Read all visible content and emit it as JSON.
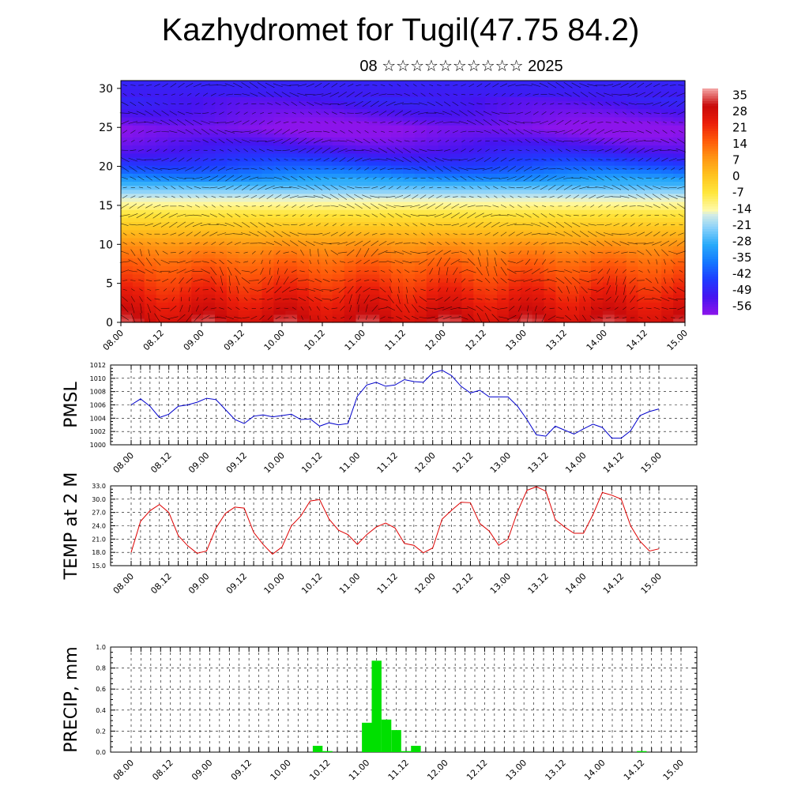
{
  "title": "Kazhydromet for Tugil(47.75 84.2)",
  "subtitle": "08 ☆☆☆☆☆☆☆☆☆☆ 2025",
  "colors": {
    "pmsl_line": "#0000cc",
    "temp_line": "#dd0000",
    "precip_bar": "#00e000",
    "grid": "#000000"
  },
  "colorbar": {
    "labels": [
      "35",
      "28",
      "21",
      "14",
      "7",
      "0",
      "-7",
      "-14",
      "-21",
      "-28",
      "-35",
      "-42",
      "-49",
      "-56"
    ]
  },
  "chart_data": [
    {
      "id": "upper-air",
      "type": "heatmap",
      "title": "",
      "xlabel": "",
      "ylabel": "",
      "x_tick_labels": [
        "08.00",
        "08.12",
        "09.00",
        "09.12",
        "10.00",
        "10.12",
        "11.00",
        "11.12",
        "12.00",
        "12.12",
        "13.00",
        "13.12",
        "14.00",
        "14.12",
        "15.00"
      ],
      "y_tick_labels": [
        "0",
        "5",
        "10",
        "15",
        "20",
        "25",
        "30"
      ],
      "ylim": [
        0,
        31
      ],
      "color_scale": [
        -56,
        35
      ],
      "profile_levels": [
        0,
        2,
        5,
        8,
        10,
        12,
        14,
        15,
        16,
        18,
        20,
        22,
        24,
        25,
        26,
        28,
        31
      ],
      "profile_values": [
        28,
        24,
        18,
        12,
        7,
        0,
        -7,
        -12,
        -16,
        -28,
        -40,
        -48,
        -54,
        -56,
        -53,
        -49,
        -46
      ],
      "note": "wind vectors"
    },
    {
      "id": "pmsl",
      "type": "line",
      "ylabel": "PMSL",
      "x_tick_labels": [
        "08.00",
        "08.12",
        "09.00",
        "09.12",
        "10.00",
        "10.12",
        "11.00",
        "11.12",
        "12.00",
        "12.12",
        "13.00",
        "13.12",
        "14.00",
        "14.12",
        "15.00"
      ],
      "y_tick_labels": [
        "1000",
        "1002",
        "1004",
        "1006",
        "1008",
        "1010",
        "1012"
      ],
      "ylim": [
        1000,
        1012
      ],
      "x_step_hours": 3,
      "series": [
        {
          "values": [
            1006.0,
            1006.9,
            1005.8,
            1004.1,
            1004.6,
            1005.8,
            1006.0,
            1006.4,
            1007.0,
            1006.8,
            1005.3,
            1003.8,
            1003.2,
            1004.3,
            1004.5,
            1004.2,
            1004.4,
            1004.6,
            1003.8,
            1003.9,
            1002.8,
            1003.3,
            1003.0,
            1003.2,
            1007.3,
            1009.0,
            1009.4,
            1008.8,
            1009.0,
            1009.8,
            1009.5,
            1009.4,
            1010.8,
            1011.2,
            1010.4,
            1008.8,
            1007.8,
            1008.2,
            1007.2,
            1007.2,
            1007.2,
            1005.8,
            1003.8,
            1001.5,
            1001.3,
            1002.8,
            1002.2,
            1001.6,
            1002.4,
            1003.1,
            1002.6,
            1001.0,
            1001.0,
            1002.1,
            1004.4,
            1005.0,
            1005.4
          ]
        }
      ]
    },
    {
      "id": "temp2m",
      "type": "line",
      "ylabel": "TEMP at 2 M",
      "x_tick_labels": [
        "08.00",
        "08.12",
        "09.00",
        "09.12",
        "10.00",
        "10.12",
        "11.00",
        "11.12",
        "12.00",
        "12.12",
        "13.00",
        "13.12",
        "14.00",
        "14.12",
        "15.00"
      ],
      "y_tick_labels": [
        "15.0",
        "18.0",
        "21.0",
        "24.0",
        "27.0",
        "30.0",
        "33.0"
      ],
      "ylim": [
        15,
        33
      ],
      "x_step_hours": 3,
      "series": [
        {
          "values": [
            18.0,
            25.0,
            27.4,
            28.8,
            27.0,
            21.8,
            19.5,
            17.8,
            18.3,
            23.5,
            26.8,
            28.2,
            28.0,
            22.5,
            19.8,
            17.6,
            19.2,
            24.0,
            26.2,
            29.6,
            29.9,
            25.5,
            23.0,
            22.0,
            19.8,
            22.0,
            23.7,
            24.6,
            23.5,
            20.0,
            19.6,
            17.9,
            19.0,
            25.5,
            27.5,
            29.3,
            29.2,
            24.5,
            22.8,
            19.6,
            21.0,
            27.2,
            32.0,
            32.8,
            31.8,
            25.4,
            23.7,
            22.3,
            22.3,
            26.5,
            31.5,
            30.9,
            30.0,
            24.0,
            20.5,
            18.3,
            18.8
          ]
        }
      ]
    },
    {
      "id": "precip",
      "type": "bar",
      "ylabel": "PRECIP, mm",
      "x_tick_labels": [
        "08.00",
        "08.12",
        "09.00",
        "09.12",
        "10.00",
        "10.12",
        "11.00",
        "11.12",
        "12.00",
        "12.12",
        "13.00",
        "13.12",
        "14.00",
        "14.12",
        "15.00"
      ],
      "y_tick_labels": [
        "0.0",
        "0.2",
        "0.4",
        "0.6",
        "0.8",
        "1.0"
      ],
      "ylim": [
        0,
        1.0
      ],
      "x_step_hours": 3,
      "series": [
        {
          "values": [
            0,
            0,
            0,
            0,
            0,
            0,
            0,
            0,
            0,
            0,
            0,
            0,
            0,
            0,
            0,
            0,
            0,
            0,
            0,
            0.06,
            0.01,
            0,
            0,
            0,
            0.28,
            0.87,
            0.31,
            0.21,
            0.01,
            0.06,
            0,
            0,
            0,
            0,
            0,
            0,
            0,
            0,
            0,
            0,
            0,
            0,
            0,
            0,
            0,
            0,
            0,
            0,
            0,
            0,
            0,
            0,
            0.01,
            0,
            0,
            0
          ]
        }
      ]
    }
  ]
}
